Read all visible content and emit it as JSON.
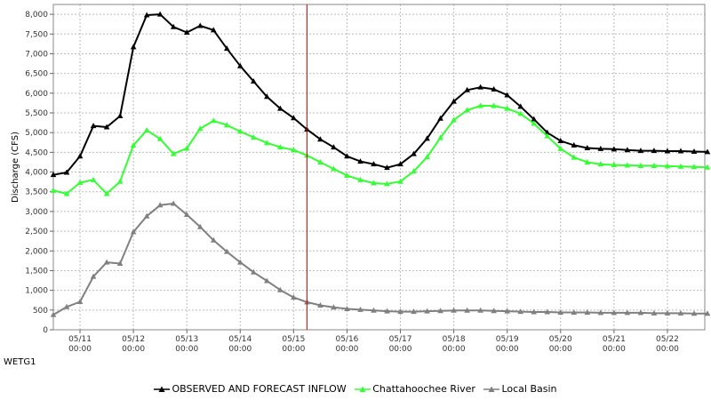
{
  "station_label": "WETG1",
  "colors": {
    "inflow": "#000000",
    "chattahoochee": "#33ff33",
    "local_basin": "#808080",
    "now_line": "#cc0000",
    "grid": "#bbbbbb",
    "plot_border": "#888888"
  },
  "chart_data": {
    "type": "line",
    "title": "",
    "xlabel": "",
    "ylabel": "Discharge (CFS)",
    "ylim": [
      0,
      8250
    ],
    "y_ticks": [
      0,
      500,
      1000,
      1500,
      2000,
      2500,
      3000,
      3500,
      4000,
      4500,
      5000,
      5500,
      6000,
      6500,
      7000,
      7500,
      8000
    ],
    "y_tick_labels": [
      "0",
      "500",
      "1,000",
      "1,500",
      "2,000",
      "2,500",
      "3,000",
      "3,500",
      "4,000",
      "4,500",
      "5,000",
      "5,500",
      "6,000",
      "6,500",
      "7,000",
      "7,500",
      "8,000"
    ],
    "x_unit": "days",
    "xlim": [
      -0.5,
      11.7
    ],
    "x_ticks": [
      0,
      1,
      2,
      3,
      4,
      5,
      6,
      7,
      8,
      9,
      10,
      11
    ],
    "x_tick_labels": [
      [
        "05/11",
        "00:00"
      ],
      [
        "05/12",
        "00:00"
      ],
      [
        "05/13",
        "00:00"
      ],
      [
        "05/14",
        "00:00"
      ],
      [
        "05/15",
        "00:00"
      ],
      [
        "05/16",
        "00:00"
      ],
      [
        "05/17",
        "00:00"
      ],
      [
        "05/18",
        "00:00"
      ],
      [
        "05/19",
        "00:00"
      ],
      [
        "05/20",
        "00:00"
      ],
      [
        "05/21",
        "00:00"
      ],
      [
        "05/22",
        "00:00"
      ]
    ],
    "now_marker_x": 4.25,
    "grid": true,
    "legend": "bottom",
    "x": [
      -0.5,
      -0.25,
      0,
      0.25,
      0.5,
      0.75,
      1,
      1.25,
      1.5,
      1.75,
      2,
      2.25,
      2.5,
      2.75,
      3,
      3.25,
      3.5,
      3.75,
      4,
      4.25,
      4.5,
      4.75,
      5,
      5.25,
      5.5,
      5.75,
      6,
      6.25,
      6.5,
      6.75,
      7,
      7.25,
      7.5,
      7.75,
      8,
      8.25,
      8.5,
      8.75,
      9,
      9.25,
      9.5,
      9.75,
      10,
      10.25,
      10.5,
      10.75,
      11,
      11.25,
      11.5,
      11.75
    ],
    "series": [
      {
        "name": "OBSERVED AND FORECAST INFLOW",
        "color_key": "inflow",
        "values": [
          3930,
          3990,
          4400,
          5170,
          5140,
          5420,
          7170,
          7980,
          8000,
          7680,
          7540,
          7710,
          7600,
          7130,
          6690,
          6300,
          5910,
          5610,
          5370,
          5080,
          4830,
          4630,
          4400,
          4270,
          4200,
          4110,
          4200,
          4460,
          4850,
          5360,
          5790,
          6080,
          6150,
          6100,
          5950,
          5660,
          5340,
          5000,
          4790,
          4680,
          4610,
          4590,
          4580,
          4560,
          4540,
          4540,
          4530,
          4530,
          4520,
          4510
        ]
      },
      {
        "name": "Chattahoochee River",
        "color_key": "chattahoochee",
        "values": [
          3530,
          3450,
          3730,
          3800,
          3450,
          3760,
          4680,
          5060,
          4840,
          4460,
          4600,
          5100,
          5300,
          5190,
          5030,
          4880,
          4740,
          4630,
          4560,
          4420,
          4250,
          4080,
          3910,
          3800,
          3720,
          3700,
          3760,
          4020,
          4380,
          4870,
          5320,
          5570,
          5680,
          5680,
          5610,
          5480,
          5230,
          4910,
          4590,
          4370,
          4250,
          4200,
          4180,
          4170,
          4160,
          4160,
          4150,
          4140,
          4130,
          4120
        ]
      },
      {
        "name": "Local Basin",
        "color_key": "local_basin",
        "values": [
          380,
          580,
          710,
          1350,
          1710,
          1680,
          2480,
          2880,
          3160,
          3200,
          2920,
          2610,
          2270,
          1980,
          1710,
          1460,
          1240,
          1010,
          820,
          700,
          620,
          570,
          530,
          510,
          490,
          470,
          460,
          460,
          470,
          480,
          490,
          490,
          490,
          480,
          470,
          460,
          450,
          450,
          440,
          440,
          440,
          430,
          430,
          430,
          430,
          420,
          420,
          420,
          410,
          410
        ]
      }
    ]
  }
}
